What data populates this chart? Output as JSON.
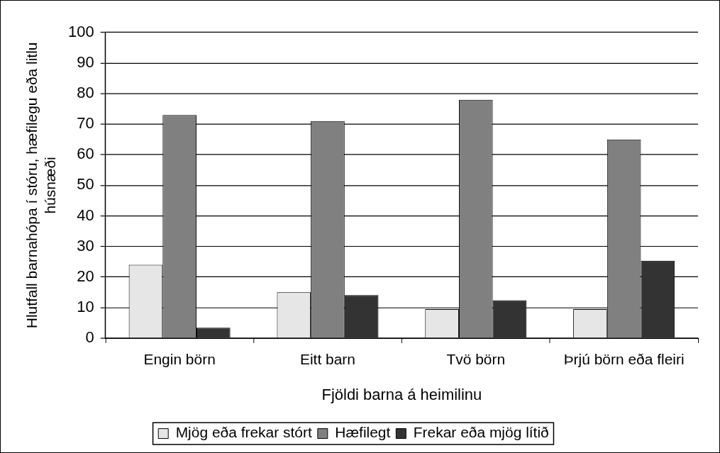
{
  "chart_data": {
    "type": "bar",
    "xlabel": "Fjöldi barna á heimilinu",
    "ylabel": "Hlutfall barnahópa í stóru, hæfilegu eða litlu húsnæði",
    "categories": [
      "Engin börn",
      "Eitt barn",
      "Tvö börn",
      "Þrjú börn eða fleiri"
    ],
    "series": [
      {
        "name": "Mjög eða frekar stórt",
        "color": "#e6e6e6",
        "values": [
          24,
          15,
          9.5,
          9.5
        ]
      },
      {
        "name": "Hæfilegt",
        "color": "#808080",
        "values": [
          73,
          71,
          78,
          65
        ]
      },
      {
        "name": "Frekar eða mjög lítið",
        "color": "#333333",
        "values": [
          3.4,
          14.1,
          12.4,
          25.3
        ]
      }
    ],
    "ylim": [
      0,
      100
    ],
    "yticks": [
      0,
      10,
      20,
      30,
      40,
      50,
      60,
      70,
      80,
      90,
      100
    ],
    "grid": "y",
    "legend": "bottom"
  }
}
